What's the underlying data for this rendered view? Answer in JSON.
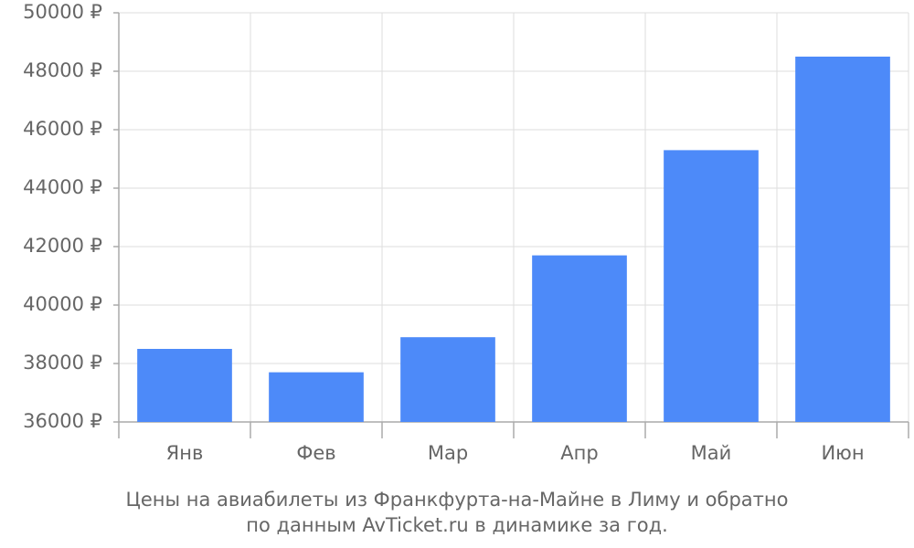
{
  "chart_data": {
    "type": "bar",
    "title": "Цены на авиабилеты из Франкфурта-на-Майне в Лиму и обратно",
    "subtitle": "по данным AvTicket.ru в динамике за год.",
    "categories": [
      "Янв",
      "Фев",
      "Мар",
      "Апр",
      "Май",
      "Июн"
    ],
    "values": [
      38500,
      37700,
      38900,
      41700,
      45300,
      48500
    ],
    "color": "#4d8af9",
    "ylim": [
      36000,
      50000
    ],
    "yticks": [
      {
        "value": 36000,
        "label": "36000 ₽"
      },
      {
        "value": 38000,
        "label": "38000 ₽"
      },
      {
        "value": 40000,
        "label": "40000 ₽"
      },
      {
        "value": 42000,
        "label": "42000 ₽"
      },
      {
        "value": 44000,
        "label": "44000 ₽"
      },
      {
        "value": 46000,
        "label": "46000 ₽"
      },
      {
        "value": 48000,
        "label": "48000 ₽"
      },
      {
        "value": 50000,
        "label": "50000 ₽"
      }
    ],
    "grid": true
  }
}
